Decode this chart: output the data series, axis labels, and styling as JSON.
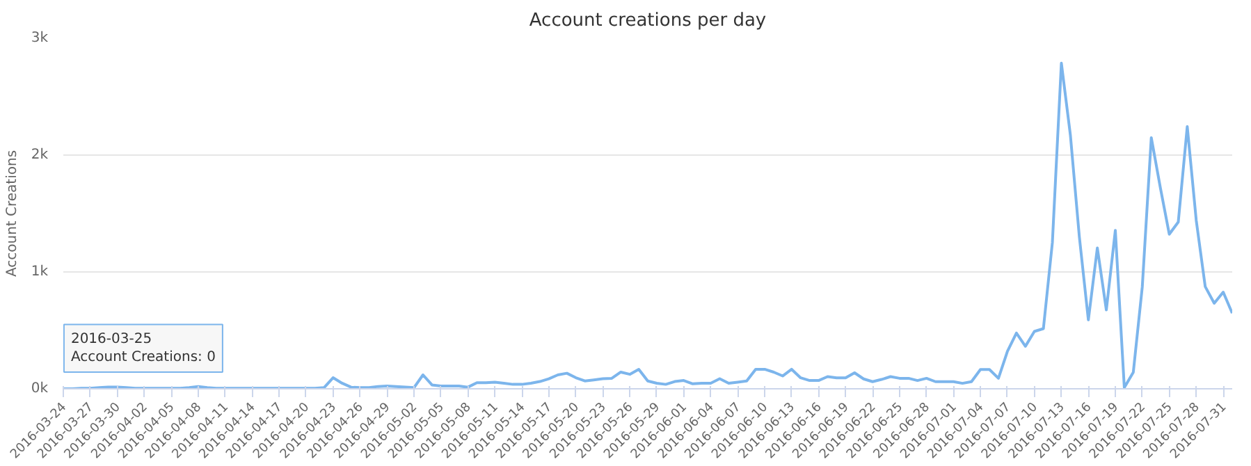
{
  "chart_data": {
    "type": "line",
    "title": "Account creations per day",
    "ylabel": "Account Creations",
    "x": [
      "2016-03-24",
      "2016-03-25",
      "2016-03-26",
      "2016-03-27",
      "2016-03-28",
      "2016-03-29",
      "2016-03-30",
      "2016-03-31",
      "2016-04-01",
      "2016-04-02",
      "2016-04-03",
      "2016-04-04",
      "2016-04-05",
      "2016-04-06",
      "2016-04-07",
      "2016-04-08",
      "2016-04-09",
      "2016-04-10",
      "2016-04-11",
      "2016-04-12",
      "2016-04-13",
      "2016-04-14",
      "2016-04-15",
      "2016-04-16",
      "2016-04-17",
      "2016-04-18",
      "2016-04-19",
      "2016-04-20",
      "2016-04-21",
      "2016-04-22",
      "2016-04-23",
      "2016-04-24",
      "2016-04-25",
      "2016-04-26",
      "2016-04-27",
      "2016-04-28",
      "2016-04-29",
      "2016-04-30",
      "2016-05-01",
      "2016-05-02",
      "2016-05-03",
      "2016-05-04",
      "2016-05-05",
      "2016-05-06",
      "2016-05-07",
      "2016-05-08",
      "2016-05-09",
      "2016-05-10",
      "2016-05-11",
      "2016-05-12",
      "2016-05-13",
      "2016-05-14",
      "2016-05-15",
      "2016-05-16",
      "2016-05-17",
      "2016-05-18",
      "2016-05-19",
      "2016-05-20",
      "2016-05-21",
      "2016-05-22",
      "2016-05-23",
      "2016-05-24",
      "2016-05-25",
      "2016-05-26",
      "2016-05-27",
      "2016-05-28",
      "2016-05-29",
      "2016-05-30",
      "2016-05-31",
      "2016-06-01",
      "2016-06-02",
      "2016-06-03",
      "2016-06-04",
      "2016-06-05",
      "2016-06-06",
      "2016-06-07",
      "2016-06-08",
      "2016-06-09",
      "2016-06-10",
      "2016-06-11",
      "2016-06-12",
      "2016-06-13",
      "2016-06-14",
      "2016-06-15",
      "2016-06-16",
      "2016-06-17",
      "2016-06-18",
      "2016-06-19",
      "2016-06-20",
      "2016-06-21",
      "2016-06-22",
      "2016-06-23",
      "2016-06-24",
      "2016-06-25",
      "2016-06-26",
      "2016-06-27",
      "2016-06-28",
      "2016-06-29",
      "2016-06-30",
      "2016-07-01",
      "2016-07-02",
      "2016-07-03",
      "2016-07-04",
      "2016-07-05",
      "2016-07-06",
      "2016-07-07",
      "2016-07-08",
      "2016-07-09",
      "2016-07-10",
      "2016-07-11",
      "2016-07-12",
      "2016-07-13",
      "2016-07-14",
      "2016-07-15",
      "2016-07-16",
      "2016-07-17",
      "2016-07-18",
      "2016-07-19",
      "2016-07-20",
      "2016-07-21",
      "2016-07-22",
      "2016-07-23",
      "2016-07-24",
      "2016-07-25",
      "2016-07-26",
      "2016-07-27",
      "2016-07-28",
      "2016-07-29",
      "2016-07-30",
      "2016-07-31",
      "2016-08-01"
    ],
    "series": [
      {
        "color": "#7cb5ec",
        "values": [
          0,
          0,
          5,
          5,
          10,
          15,
          15,
          10,
          5,
          5,
          5,
          5,
          5,
          5,
          10,
          20,
          10,
          5,
          5,
          5,
          5,
          5,
          5,
          5,
          5,
          5,
          5,
          5,
          5,
          10,
          95,
          48,
          14,
          10,
          10,
          20,
          24,
          20,
          15,
          10,
          119,
          33,
          24,
          24,
          24,
          14,
          52,
          52,
          57,
          48,
          38,
          38,
          48,
          62,
          86,
          119,
          133,
          95,
          67,
          76,
          86,
          90,
          143,
          124,
          167,
          67,
          48,
          38,
          62,
          71,
          43,
          48,
          48,
          86,
          48,
          57,
          67,
          167,
          167,
          143,
          110,
          167,
          94,
          71,
          71,
          104,
          94,
          94,
          137,
          85,
          61,
          80,
          104,
          90,
          90,
          71,
          90,
          61,
          61,
          61,
          47,
          61,
          165,
          165,
          90,
          320,
          477,
          364,
          491,
          515,
          1252,
          2787,
          2173,
          1300,
          590,
          1205,
          675,
          1356,
          10,
          142,
          874,
          2149,
          1724,
          1323,
          1427,
          2244,
          1441,
          874,
          732,
          827,
          647
        ]
      }
    ],
    "xlim": [
      "2016-03-24",
      "2016-08-01"
    ],
    "xticks": [
      "2016-03-24",
      "2016-03-27",
      "2016-03-30",
      "2016-04-02",
      "2016-04-05",
      "2016-04-08",
      "2016-04-11",
      "2016-04-14",
      "2016-04-17",
      "2016-04-20",
      "2016-04-23",
      "2016-04-26",
      "2016-04-29",
      "2016-05-02",
      "2016-05-05",
      "2016-05-08",
      "2016-05-11",
      "2016-05-14",
      "2016-05-17",
      "2016-05-20",
      "2016-05-23",
      "2016-05-26",
      "2016-05-29",
      "2016-06-01",
      "2016-06-04",
      "2016-06-07",
      "2016-06-10",
      "2016-06-13",
      "2016-06-16",
      "2016-06-19",
      "2016-06-22",
      "2016-06-25",
      "2016-06-28",
      "2016-07-01",
      "2016-07-04",
      "2016-07-07",
      "2016-07-10",
      "2016-07-13",
      "2016-07-16",
      "2016-07-19",
      "2016-07-22",
      "2016-07-25",
      "2016-07-28",
      "2016-07-31"
    ],
    "ylim": [
      0,
      3000
    ],
    "yticks": [
      {
        "value": 0,
        "label": "0k"
      },
      {
        "value": 1000,
        "label": "1k"
      },
      {
        "value": 2000,
        "label": "2k"
      },
      {
        "value": 3000,
        "label": "3k"
      }
    ],
    "grid": "y",
    "marker": "none",
    "line_style": "solid",
    "annotations": [
      {
        "text": "2016-03-25\nAccount Creations: 0",
        "x": "2016-03-25",
        "y": 0
      }
    ]
  }
}
